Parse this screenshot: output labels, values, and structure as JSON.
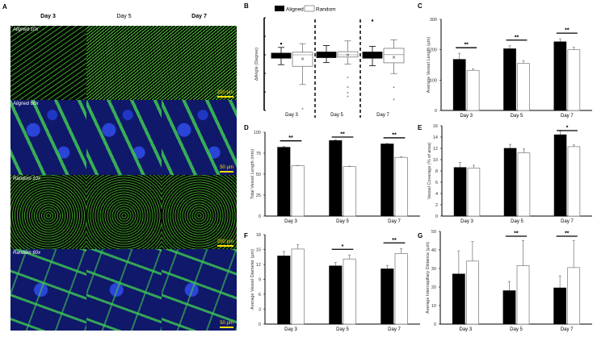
{
  "panel_A": {
    "label": "A",
    "columns": [
      "Day 3",
      "Day 5",
      "Day 7"
    ],
    "rows": [
      {
        "label": "Aligned 10x",
        "scale_bar": "200 µm"
      },
      {
        "label": "Aligned 60x",
        "scale_bar": "50 µm"
      },
      {
        "label": "Random 10x",
        "scale_bar": "200 µm"
      },
      {
        "label": "Random 60x",
        "scale_bar": "50 µm"
      }
    ],
    "channel_colors": {
      "actin": "#46d232",
      "nuclei": "#2a45d8"
    }
  },
  "legend": {
    "aligned": "Aligned",
    "random": "Random"
  },
  "colors": {
    "aligned": "#000000",
    "random": "#ffffff",
    "error": "#808080"
  },
  "chart_data": [
    {
      "panel": "B",
      "type": "boxplot",
      "ylabel": "ΔAngle (Degree)",
      "yticks_labeled": false,
      "ylim": [
        0,
        5
      ],
      "categories": [
        "Day 3",
        "Day 5",
        "Day 7"
      ],
      "series": [
        {
          "name": "Aligned",
          "boxes": [
            {
              "q1": 2.82,
              "q3": 3.09,
              "median": 2.95,
              "min": 2.47,
              "max": 3.4,
              "outliers": [
                3.6
              ]
            },
            {
              "q1": 2.85,
              "q3": 3.15,
              "median": 3.0,
              "min": 2.58,
              "max": 3.5,
              "outliers": []
            },
            {
              "q1": 2.82,
              "q3": 3.15,
              "median": 2.98,
              "min": 2.41,
              "max": 3.46,
              "outliers": [
                4.85
              ]
            }
          ]
        },
        {
          "name": "Random",
          "boxes": [
            {
              "q1": 2.38,
              "q3": 3.14,
              "median": 3.0,
              "mean": 2.78,
              "min": 1.4,
              "max": 3.6,
              "outliers": [
                0.1
              ]
            },
            {
              "q1": 2.88,
              "q3": 3.17,
              "median": 3.0,
              "mean": 3.0,
              "min": 2.5,
              "max": 3.75,
              "outliers": [
                1.78,
                1.26,
                0.96,
                0.76
              ]
            },
            {
              "q1": 2.57,
              "q3": 3.35,
              "median": 3.01,
              "mean": 2.88,
              "min": 1.99,
              "max": 3.81,
              "outliers": [
                1.25,
                0.59
              ]
            }
          ]
        }
      ]
    },
    {
      "panel": "C",
      "type": "bar",
      "ylabel": "Average Vessel Length (µm)",
      "ylim": [
        0,
        300
      ],
      "yticks": [
        0,
        100,
        200,
        300
      ],
      "categories": [
        "Day 3",
        "Day 5",
        "Day 7"
      ],
      "series": [
        {
          "name": "Aligned",
          "values": [
            168,
            203,
            226
          ],
          "errors": [
            20,
            10,
            10
          ]
        },
        {
          "name": "Random",
          "values": [
            132,
            155,
            200
          ],
          "errors": [
            5,
            9,
            8
          ]
        }
      ],
      "significance": [
        "**",
        "**",
        "**"
      ]
    },
    {
      "panel": "D",
      "type": "bar",
      "ylabel": "Total Vessel Length (mm)",
      "ylim": [
        0,
        100
      ],
      "yticks": [
        0,
        25,
        50,
        75,
        100
      ],
      "categories": [
        "Day 3",
        "Day 5",
        "Day 7"
      ],
      "series": [
        {
          "name": "Aligned",
          "values": [
            82,
            90,
            86
          ],
          "errors": [
            1,
            1,
            0.6
          ]
        },
        {
          "name": "Random",
          "values": [
            60,
            59,
            70
          ],
          "errors": [
            0.4,
            0.5,
            0.8
          ]
        }
      ],
      "significance": [
        "**",
        "**",
        "**"
      ]
    },
    {
      "panel": "E",
      "type": "bar",
      "ylabel": "Vessel Coverage  (% of area)",
      "ylim": [
        0,
        16
      ],
      "yticks": [
        0,
        2,
        4,
        6,
        8,
        10,
        12,
        14,
        16
      ],
      "categories": [
        "Day 3",
        "Day 5",
        "Day 7"
      ],
      "series": [
        {
          "name": "Aligned",
          "values": [
            8.6,
            12.0,
            14.4
          ],
          "errors": [
            0.9,
            0.7,
            0.8
          ]
        },
        {
          "name": "Random",
          "values": [
            8.5,
            11.2,
            12.3
          ],
          "errors": [
            0.5,
            0.7,
            0.3
          ]
        }
      ],
      "significance": [
        "",
        "",
        "*"
      ]
    },
    {
      "panel": "F",
      "type": "bar",
      "ylabel": "Average  Vessel Diameter (µm)",
      "ylim": [
        0,
        18
      ],
      "yticks": [
        0,
        3,
        6,
        9,
        12,
        15,
        18
      ],
      "categories": [
        "Day 3",
        "Day 5",
        "Day 7"
      ],
      "series": [
        {
          "name": "Aligned",
          "values": [
            13.7,
            11.7,
            11.1
          ],
          "errors": [
            0.9,
            0.7,
            0.7
          ]
        },
        {
          "name": "Random",
          "values": [
            15.1,
            13.1,
            14.2
          ],
          "errors": [
            0.9,
            0.8,
            1.0
          ]
        }
      ],
      "significance": [
        "",
        "*",
        "**"
      ]
    },
    {
      "panel": "G",
      "type": "bar",
      "ylabel": "Average  Intercapillary  Distance (µm)",
      "ylim": [
        0,
        50
      ],
      "yticks": [
        0,
        10,
        20,
        30,
        40,
        50
      ],
      "categories": [
        "Day 3",
        "Day 5",
        "Day 7"
      ],
      "series": [
        {
          "name": "Aligned",
          "values": [
            27,
            18,
            19.5
          ],
          "errors": [
            12.5,
            5,
            6.5
          ]
        },
        {
          "name": "Random",
          "values": [
            34,
            31.5,
            30.5
          ],
          "errors": [
            10.5,
            13.5,
            14.5
          ]
        }
      ],
      "significance": [
        "",
        "**",
        "**"
      ]
    }
  ]
}
